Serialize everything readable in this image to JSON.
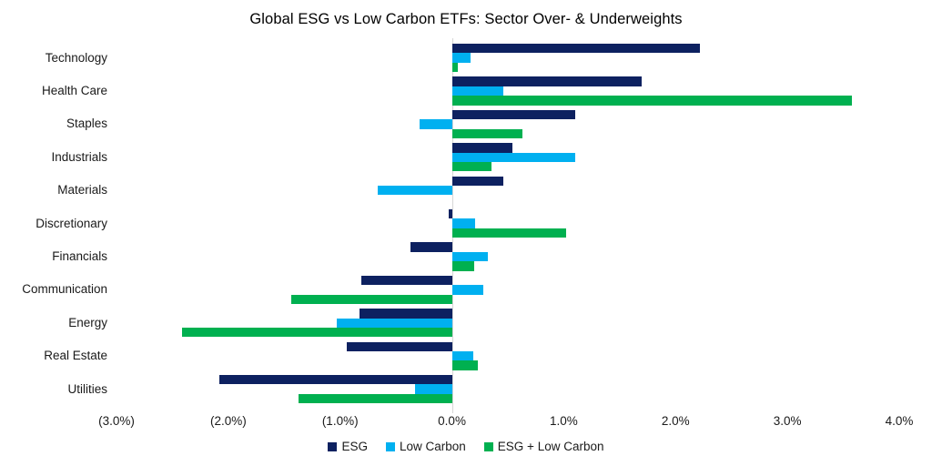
{
  "chart_data": {
    "type": "bar",
    "orientation": "horizontal",
    "title": "Global ESG vs Low Carbon ETFs: Sector Over- & Underweights",
    "categories": [
      "Technology",
      "Health Care",
      "Staples",
      "Industrials",
      "Materials",
      "Discretionary",
      "Financials",
      "Communication",
      "Energy",
      "Real Estate",
      "Utilities"
    ],
    "series": [
      {
        "name": "ESG",
        "color": "#0d2160",
        "values": [
          2.22,
          1.7,
          1.1,
          0.54,
          0.46,
          -0.03,
          -0.37,
          -0.81,
          -0.83,
          -0.94,
          -2.08
        ]
      },
      {
        "name": "Low Carbon",
        "color": "#00b0f0",
        "values": [
          0.17,
          0.46,
          -0.29,
          1.1,
          -0.66,
          0.21,
          0.32,
          0.28,
          -1.03,
          0.19,
          -0.33
        ]
      },
      {
        "name": "ESG + Low Carbon",
        "color": "#00b050",
        "values": [
          0.05,
          3.58,
          0.63,
          0.35,
          0.0,
          1.02,
          0.2,
          -1.44,
          -2.41,
          0.23,
          -1.37
        ]
      }
    ],
    "value_unit": "percent",
    "xlim": [
      -3.0,
      4.0
    ],
    "x_tick_step": 1.0,
    "x_ticks": [
      -3.0,
      -2.0,
      -1.0,
      0.0,
      1.0,
      2.0,
      3.0,
      4.0
    ],
    "x_tick_labels": [
      "(3.0%)",
      "(2.0%)",
      "(1.0%)",
      "0.0%",
      "1.0%",
      "2.0%",
      "3.0%",
      "4.0%"
    ],
    "grid": false,
    "legend_position": "bottom",
    "axis_line_color": "#d6d6d6",
    "text_color": "#1a1a1a"
  }
}
